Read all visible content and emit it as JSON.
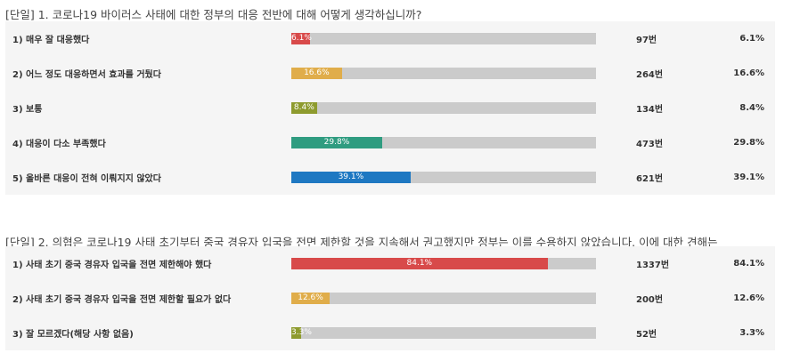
{
  "questions": [
    {
      "title": "[단일] 1. 코로나19 바이러스 사태에 대한 정부의 대응 전반에 대해 어떻게 생각하십니까?",
      "options": [
        {
          "label": "1) 매우 잘 대응했다",
          "percent": 6.1,
          "percent_text": "6.1%",
          "count": "97번",
          "color": "#d84a4a"
        },
        {
          "label": "2) 어느 정도 대응하면서 효과를 거뒀다",
          "percent": 16.6,
          "percent_text": "16.6%",
          "count": "264번",
          "color": "#e0ad4a"
        },
        {
          "label": "3) 보통",
          "percent": 8.4,
          "percent_text": "8.4%",
          "count": "134번",
          "color": "#8e9b2e"
        },
        {
          "label": "4) 대응이 다소 부족했다",
          "percent": 29.8,
          "percent_text": "29.8%",
          "count": "473번",
          "color": "#2f9c80"
        },
        {
          "label": "5) 올바른 대응이 전혀 이뤄지지 않았다",
          "percent": 39.1,
          "percent_text": "39.1%",
          "count": "621번",
          "color": "#1e78c2"
        }
      ]
    },
    {
      "title": "[단일] 2. 의협은 코로나19 사태 초기부터 중국 경유자 입국을 전면 제한할 것을 지속해서 권고했지만 정부는 이를 수용하지 않았습니다. 이에 대한 견해는",
      "options": [
        {
          "label": "1) 사태 초기 중국 경유자 입국을 전면 제한해야 했다",
          "percent": 84.1,
          "percent_text": "84.1%",
          "count": "1337번",
          "color": "#d84a4a"
        },
        {
          "label": "2) 사태 초기 중국 경유자 입국을 전면 제한할 필요가 없다",
          "percent": 12.6,
          "percent_text": "12.6%",
          "count": "200번",
          "color": "#e0ad4a"
        },
        {
          "label": "3) 잘 모르겠다(해당 사항 없음)",
          "percent": 3.3,
          "percent_text": "3.3%",
          "count": "52번",
          "color": "#8e9b2e"
        }
      ]
    }
  ]
}
